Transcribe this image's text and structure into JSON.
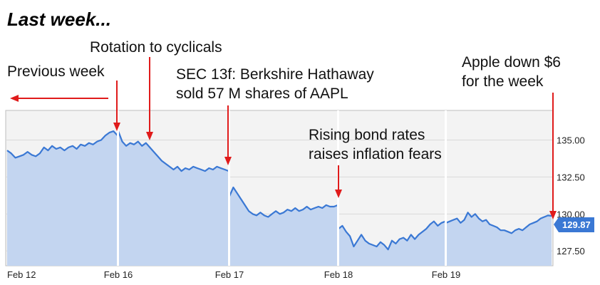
{
  "title": "Last week...",
  "chart_data": {
    "type": "area",
    "x_labels": [
      "Feb 12",
      "Feb 16",
      "Feb 17",
      "Feb 18",
      "Feb 19"
    ],
    "y_ticks": [
      "135.00",
      "132.50",
      "130.00",
      "127.50"
    ],
    "ylim": [
      126.5,
      137.0
    ],
    "grid": true,
    "current_value": "129.87",
    "sessions": [
      {
        "day": "Feb 12",
        "values": [
          134.3,
          134.1,
          133.8,
          133.9,
          134.0,
          134.2,
          134.0,
          133.9,
          134.1,
          134.5,
          134.3,
          134.6,
          134.4,
          134.5,
          134.3,
          134.5,
          134.6,
          134.4,
          134.7,
          134.6,
          134.8,
          134.7,
          134.9,
          135.0,
          135.3,
          135.5,
          135.6,
          135.3
        ]
      },
      {
        "day": "Feb 16",
        "values": [
          135.6,
          134.9,
          134.6,
          134.8,
          134.7,
          134.9,
          134.6,
          134.8,
          134.5,
          134.2,
          133.9,
          133.6,
          133.4,
          133.2,
          133.0,
          133.2,
          132.9,
          133.1,
          133.0,
          133.2,
          133.1,
          133.0,
          132.9,
          133.1,
          133.0,
          133.2,
          133.1,
          133.0,
          132.9
        ]
      },
      {
        "day": "Feb 17",
        "values": [
          131.2,
          131.8,
          131.4,
          131.0,
          130.6,
          130.2,
          130.0,
          129.9,
          130.1,
          129.9,
          129.8,
          130.0,
          130.2,
          130.0,
          130.1,
          130.3,
          130.2,
          130.4,
          130.2,
          130.3,
          130.5,
          130.3,
          130.4,
          130.5,
          130.4,
          130.6,
          130.5,
          130.5,
          130.6
        ]
      },
      {
        "day": "Feb 18",
        "values": [
          129.0,
          129.2,
          128.8,
          128.5,
          127.8,
          128.2,
          128.6,
          128.2,
          128.0,
          127.9,
          127.8,
          128.1,
          127.9,
          127.6,
          128.2,
          128.0,
          128.3,
          128.4,
          128.2,
          128.6,
          128.3,
          128.6,
          128.8,
          129.0,
          129.3,
          129.5,
          129.2,
          129.4,
          129.5
        ]
      },
      {
        "day": "Feb 19",
        "values": [
          129.4,
          129.5,
          129.6,
          129.7,
          129.4,
          129.6,
          130.1,
          129.8,
          130.0,
          129.7,
          129.5,
          129.6,
          129.3,
          129.2,
          129.1,
          128.9,
          128.9,
          128.8,
          128.7,
          128.9,
          129.0,
          128.9,
          129.1,
          129.3,
          129.4,
          129.5,
          129.7,
          129.8,
          129.9,
          129.87
        ]
      }
    ]
  },
  "annotations": {
    "previous_week": "Previous week",
    "rotation": "Rotation to cyclicals",
    "sec_line1": "SEC 13f: Berkshire Hathaway",
    "sec_line2": "sold 57 M shares of AAPL",
    "bond_line1": "Rising bond rates",
    "bond_line2": "raises inflation fears",
    "apple_line1": "Apple down $6",
    "apple_line2": "for the week"
  },
  "colors": {
    "line": "#3a78d4",
    "fill": "#c3d5f0",
    "plot_bg": "#f3f3f3",
    "grid": "#d9d9d9",
    "arrow": "#e01b1b",
    "badge": "#3a78d4"
  }
}
